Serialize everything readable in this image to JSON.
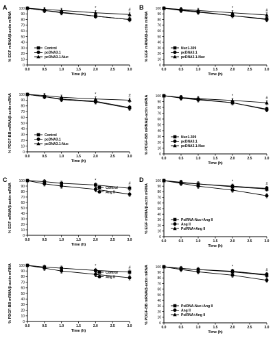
{
  "chart_data": [
    {
      "panel_letter": "A",
      "type": "line",
      "ylabel": "% EGF mRNA/β-actin mRNA",
      "xlabel": "Time (h)",
      "xlim": [
        0,
        3.0
      ],
      "ylim": [
        0,
        100
      ],
      "xticks": [
        "0.0",
        "0.5",
        "1.0",
        "1.5",
        "2.0",
        "2.5",
        "3.0"
      ],
      "yticks": [
        "0",
        "10",
        "20",
        "30",
        "40",
        "50",
        "60",
        "70",
        "80",
        "90",
        "100"
      ],
      "legend_position": "left",
      "x": [
        0,
        0.5,
        1.0,
        2.0,
        3.0
      ],
      "series": [
        {
          "name": "Control",
          "marker": "square",
          "values": [
            100,
            96,
            93,
            86,
            80
          ]
        },
        {
          "name": "pcDNA3.1",
          "marker": "circle",
          "values": [
            100,
            96,
            92,
            86,
            80
          ]
        },
        {
          "name": "pcDNA3.1-Nuc",
          "marker": "triangle",
          "values": [
            100,
            98,
            96,
            92,
            89
          ]
        }
      ],
      "annotations": [
        {
          "x": 2.0,
          "text": "*"
        },
        {
          "x": 3.0,
          "text": "#"
        }
      ]
    },
    {
      "panel_letter": "B",
      "type": "line",
      "ylabel": "% EGF mRNA/β-actin mRNA",
      "xlabel": "Time (h)",
      "xlim": [
        0,
        3.0
      ],
      "ylim": [
        0,
        100
      ],
      "xticks": [
        "0.0",
        "0.5",
        "1.0",
        "1.5",
        "2.0",
        "2.5",
        "3.0"
      ],
      "yticks": [
        "0",
        "10",
        "20",
        "30",
        "40",
        "50",
        "60",
        "70",
        "80",
        "90",
        "100"
      ],
      "legend_position": "left",
      "x": [
        0,
        0.5,
        1.0,
        2.0,
        3.0
      ],
      "series": [
        {
          "name": "Nuc1-309",
          "marker": "square",
          "values": [
            100,
            97,
            94,
            87,
            81
          ]
        },
        {
          "name": "pcDNA3.1",
          "marker": "circle",
          "values": [
            100,
            96,
            93,
            87,
            80
          ]
        },
        {
          "name": "pcDNA3.1-Nuc",
          "marker": "triangle",
          "values": [
            100,
            98,
            96,
            92,
            88
          ]
        }
      ],
      "annotations": [
        {
          "x": 2.0,
          "text": "*"
        },
        {
          "x": 3.0,
          "text": "#"
        }
      ]
    },
    {
      "panel_letter": "",
      "type": "line",
      "ylabel": "% PDGF-BB mRNA/β-actin mRNA",
      "xlabel": "Time (h)",
      "xlim": [
        0,
        3.0
      ],
      "ylim": [
        0,
        100
      ],
      "xticks": [
        "0.0",
        "0.5",
        "1.0",
        "1.5",
        "2.0",
        "2.5",
        "3.0"
      ],
      "yticks": [
        "0",
        "10",
        "20",
        "30",
        "40",
        "50",
        "60",
        "70",
        "80",
        "90",
        "100"
      ],
      "legend_position": "left",
      "x": [
        0,
        0.5,
        1.0,
        2.0,
        3.0
      ],
      "series": [
        {
          "name": "Control",
          "marker": "square",
          "values": [
            100,
            96,
            92,
            88,
            77
          ]
        },
        {
          "name": "pcDNA3.1",
          "marker": "circle",
          "values": [
            100,
            96,
            91,
            87,
            76
          ]
        },
        {
          "name": "pcDNA3.1-Nuc",
          "marker": "triangle",
          "values": [
            100,
            98,
            95,
            92,
            90
          ]
        }
      ],
      "annotations": [
        {
          "x": 2.0,
          "text": "*"
        },
        {
          "x": 3.0,
          "text": "#"
        }
      ]
    },
    {
      "panel_letter": "",
      "type": "line",
      "ylabel": "% PDGF-BB mRNA/β-actin mRNA",
      "xlabel": "Time (h)",
      "xlim": [
        0,
        3.0
      ],
      "ylim": [
        0,
        100
      ],
      "xticks": [
        "0.0",
        "0.5",
        "1.0",
        "1.5",
        "2.0",
        "2.5",
        "3.0"
      ],
      "yticks": [
        "0",
        "10",
        "20",
        "30",
        "40",
        "50",
        "60",
        "70",
        "80",
        "90",
        "100"
      ],
      "legend_position": "left",
      "x": [
        0,
        0.5,
        1.0,
        2.0,
        3.0
      ],
      "series": [
        {
          "name": "Nuc1-309",
          "marker": "square",
          "values": [
            100,
            97,
            94,
            88,
            77
          ]
        },
        {
          "name": "pcDNA3.1",
          "marker": "circle",
          "values": [
            100,
            96,
            93,
            88,
            76
          ]
        },
        {
          "name": "pcDNA3.1-Nuc",
          "marker": "triangle",
          "values": [
            100,
            97,
            95,
            92,
            88
          ]
        }
      ],
      "annotations": [
        {
          "x": 2.0,
          "text": "*"
        },
        {
          "x": 3.0,
          "text": "#"
        }
      ]
    },
    {
      "panel_letter": "C",
      "type": "line",
      "ylabel": "% EGF mRNA/β-actin mRNA",
      "xlabel": "Time (h)",
      "xlim": [
        0,
        3.0
      ],
      "ylim": [
        0,
        100
      ],
      "xticks": [
        "0.0",
        "0.5",
        "1.0",
        "1.5",
        "2.0",
        "2.5",
        "3.0"
      ],
      "yticks": [
        "0",
        "10",
        "20",
        "30",
        "40",
        "50",
        "60",
        "70",
        "80",
        "90",
        "100"
      ],
      "legend_position": "top-right",
      "x": [
        0,
        0.5,
        1.0,
        2.0,
        3.0
      ],
      "series": [
        {
          "name": "Control",
          "marker": "square",
          "values": [
            100,
            98,
            95,
            92,
            86
          ]
        },
        {
          "name": "Ang II",
          "marker": "circle",
          "values": [
            100,
            94,
            90,
            84,
            75
          ]
        }
      ],
      "annotations": [
        {
          "x": 2.0,
          "text": "*"
        },
        {
          "x": 3.0,
          "text": "#"
        }
      ]
    },
    {
      "panel_letter": "D",
      "type": "line",
      "ylabel": "% EGF mRNA/β-actin mRNA",
      "xlabel": "Time (h)",
      "xlim": [
        0,
        3.0
      ],
      "ylim": [
        0,
        100
      ],
      "xticks": [
        "0.0",
        "0.5",
        "1.0",
        "1.5",
        "2.0",
        "2.5",
        "3.0"
      ],
      "yticks": [
        "0",
        "10",
        "20",
        "30",
        "40",
        "50",
        "60",
        "70",
        "80",
        "90",
        "100"
      ],
      "legend_position": "left",
      "x": [
        0,
        0.5,
        1.0,
        2.0,
        3.0
      ],
      "series": [
        {
          "name": "PsiRNA-Nuc+Ang II",
          "marker": "square",
          "values": [
            100,
            97,
            94,
            90,
            86
          ]
        },
        {
          "name": "Ang II",
          "marker": "circle",
          "values": [
            100,
            95,
            90,
            83,
            73
          ]
        },
        {
          "name": "PsiRNA+Ang II",
          "marker": "triangle",
          "values": [
            100,
            96,
            94,
            89,
            85
          ]
        }
      ],
      "annotations": [
        {
          "x": 2.0,
          "text": "*"
        },
        {
          "x": 3.0,
          "text": "#"
        }
      ]
    },
    {
      "panel_letter": "",
      "type": "line",
      "ylabel": "% PDGF-BB mRNA/β-actin mRNA",
      "xlabel": "Time (h)",
      "xlim": [
        0,
        3.0
      ],
      "ylim": [
        0,
        100
      ],
      "xticks": [
        "0.0",
        "0.5",
        "1.0",
        "1.5",
        "2.0",
        "2.5",
        "3.0"
      ],
      "yticks": [
        "0",
        "10",
        "20",
        "30",
        "40",
        "50",
        "60",
        "70",
        "80",
        "90",
        "100"
      ],
      "legend_position": "top-right",
      "x": [
        0,
        0.5,
        1.0,
        2.0,
        3.0
      ],
      "series": [
        {
          "name": "Control",
          "marker": "square",
          "values": [
            100,
            97,
            95,
            91,
            88
          ]
        },
        {
          "name": "Ang II",
          "marker": "circle",
          "values": [
            100,
            95,
            90,
            84,
            78
          ]
        }
      ],
      "annotations": [
        {
          "x": 2.0,
          "text": "*"
        },
        {
          "x": 3.0,
          "text": "#"
        }
      ]
    },
    {
      "panel_letter": "",
      "type": "line",
      "ylabel": "% PDGF-BB mRNA/β-actin mRNA",
      "xlabel": "Time (h)",
      "xlim": [
        0,
        3.0
      ],
      "ylim": [
        0,
        100
      ],
      "xticks": [
        "0.0",
        "0.5",
        "1.0",
        "1.5",
        "2.0",
        "2.5",
        "3.0"
      ],
      "yticks": [
        "0",
        "10",
        "20",
        "30",
        "40",
        "50",
        "60",
        "70",
        "80",
        "90",
        "100"
      ],
      "legend_position": "left",
      "x": [
        0,
        0.5,
        1.0,
        2.0,
        3.0
      ],
      "series": [
        {
          "name": "PsiRNA-Nuc+Ang II",
          "marker": "square",
          "values": [
            100,
            97,
            95,
            92,
            86
          ]
        },
        {
          "name": "Ang II",
          "marker": "circle",
          "values": [
            100,
            95,
            91,
            85,
            76
          ]
        },
        {
          "name": "PsiRNA+Ang II",
          "marker": "triangle",
          "values": [
            100,
            97,
            95,
            91,
            85
          ]
        }
      ],
      "annotations": [
        {
          "x": 2.0,
          "text": "*"
        },
        {
          "x": 3.0,
          "text": "#"
        }
      ]
    }
  ]
}
